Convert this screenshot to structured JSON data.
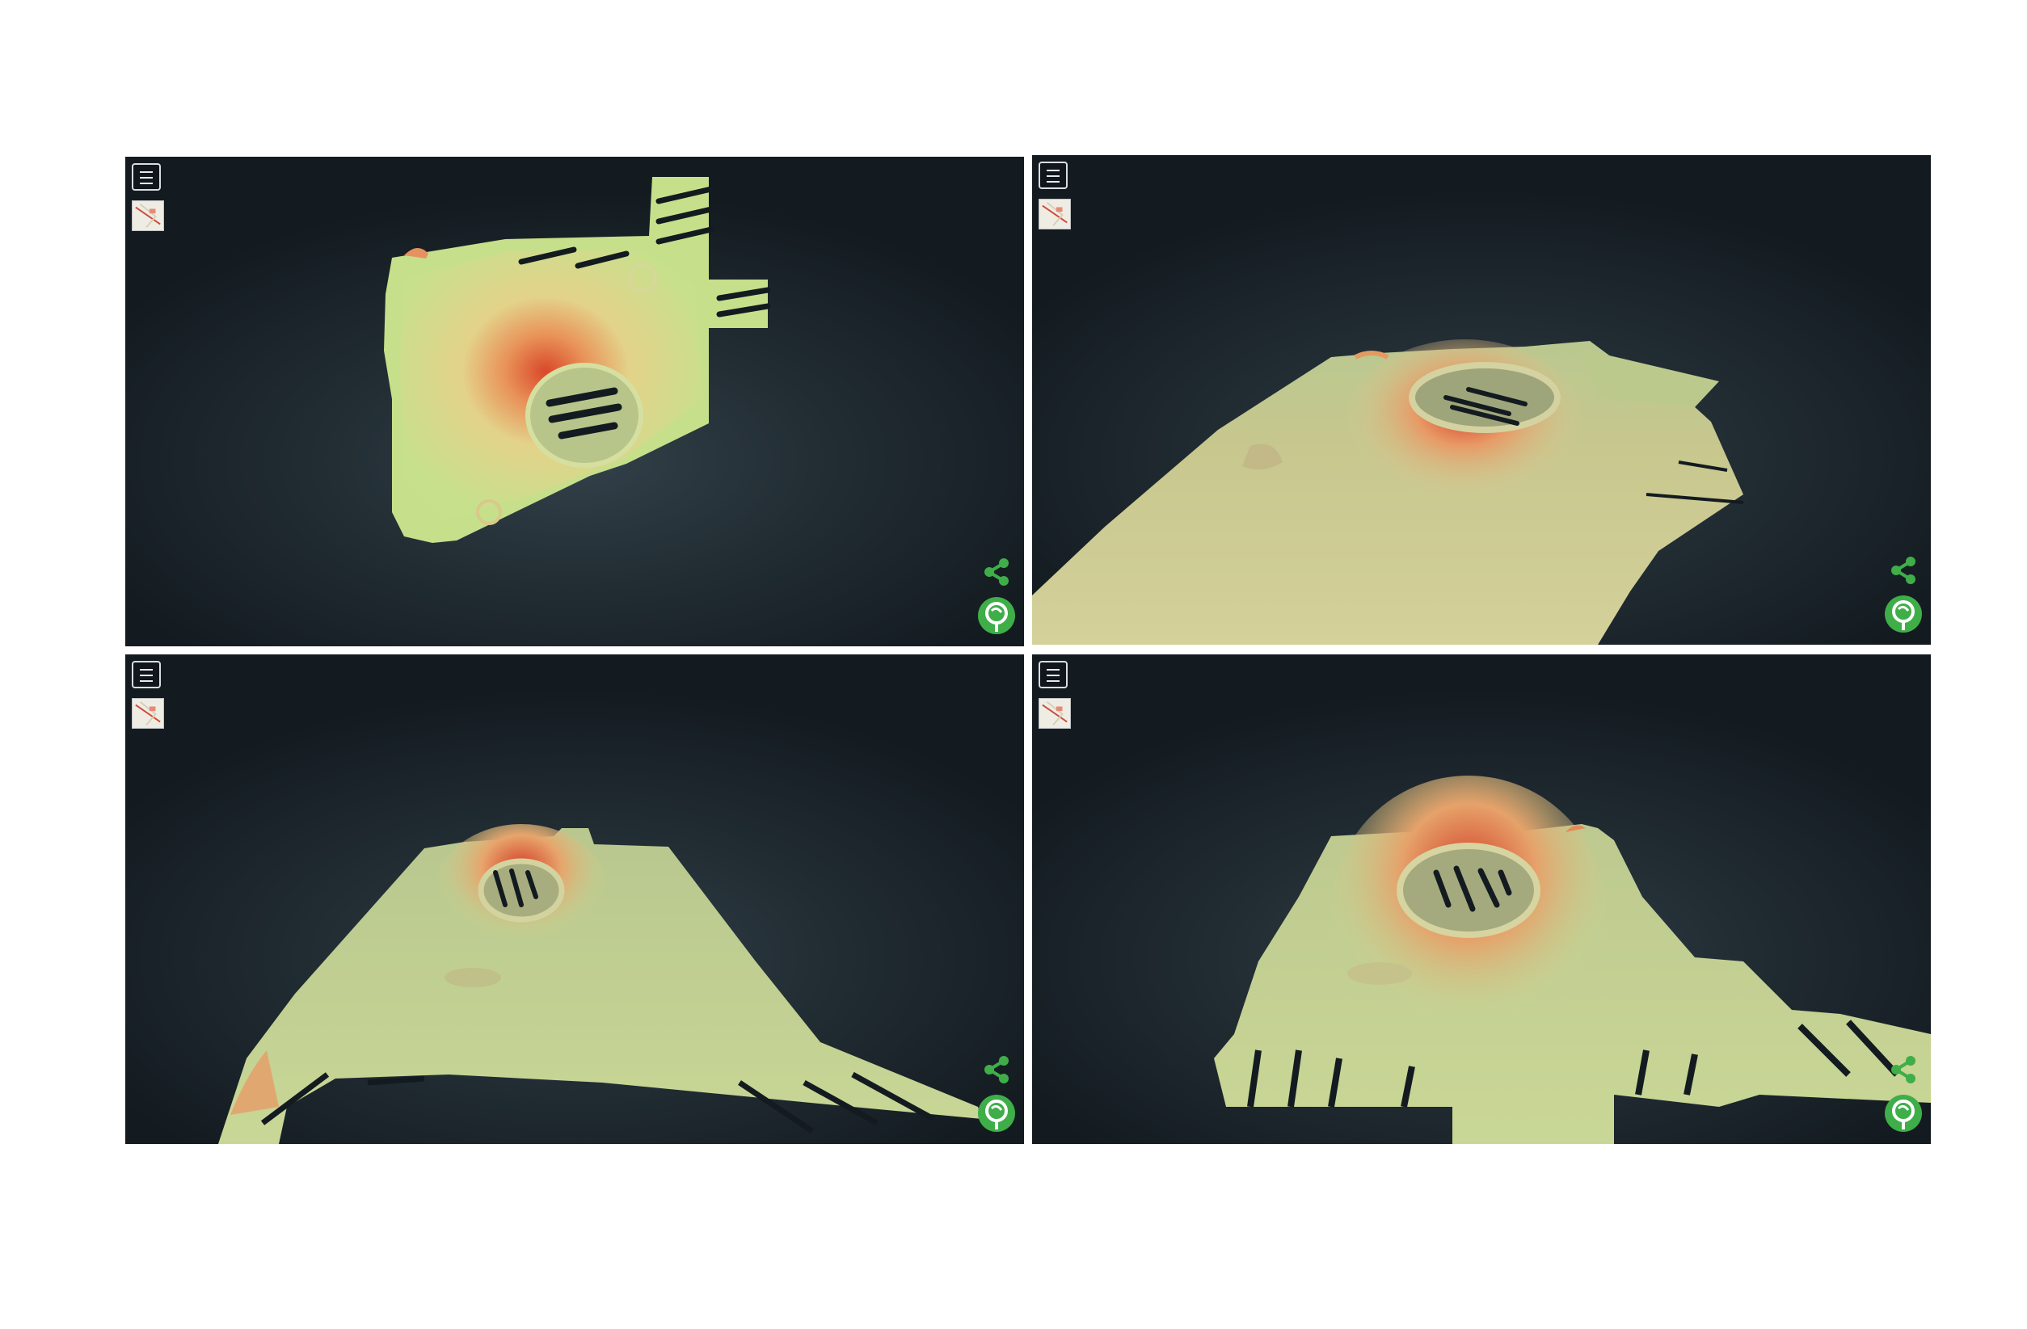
{
  "colors": {
    "viewport_bg": "#1a232a",
    "terrain_low": "#c9e08a",
    "terrain_mid": "#e8c27a",
    "terrain_high": "#d9482a",
    "accent_green": "#3fae49",
    "icon_light": "#e6e9ec"
  },
  "icons": {
    "menu": "menu-icon",
    "map": "map-thumbnail-icon",
    "share": "share-icon",
    "logo": "brand-logo-icon"
  },
  "viewports": [
    {
      "view": "top-down"
    },
    {
      "view": "oblique-northwest"
    },
    {
      "view": "oblique-south"
    },
    {
      "view": "oblique-southeast"
    }
  ]
}
